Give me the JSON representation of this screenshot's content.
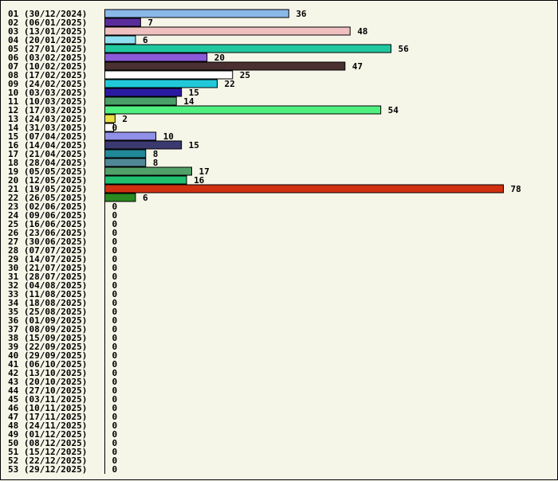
{
  "chart_data": {
    "type": "bar",
    "orientation": "horizontal",
    "title": "",
    "xlabel": "",
    "ylabel": "",
    "grid": false,
    "legend": "none",
    "xlim": [
      0,
      78
    ],
    "categories": [
      "01 (30/12/2024)",
      "02 (06/01/2025)",
      "03 (13/01/2025)",
      "04 (20/01/2025)",
      "05 (27/01/2025)",
      "06 (03/02/2025)",
      "07 (10/02/2025)",
      "08 (17/02/2025)",
      "09 (24/02/2025)",
      "10 (03/03/2025)",
      "11 (10/03/2025)",
      "12 (17/03/2025)",
      "13 (24/03/2025)",
      "14 (31/03/2025)",
      "15 (07/04/2025)",
      "16 (14/04/2025)",
      "17 (21/04/2025)",
      "18 (28/04/2025)",
      "19 (05/05/2025)",
      "20 (12/05/2025)",
      "21 (19/05/2025)",
      "22 (26/05/2025)",
      "23 (02/06/2025)",
      "24 (09/06/2025)",
      "25 (16/06/2025)",
      "26 (23/06/2025)",
      "27 (30/06/2025)",
      "28 (07/07/2025)",
      "29 (14/07/2025)",
      "30 (21/07/2025)",
      "31 (28/07/2025)",
      "32 (04/08/2025)",
      "33 (11/08/2025)",
      "34 (18/08/2025)",
      "35 (25/08/2025)",
      "36 (01/09/2025)",
      "37 (08/09/2025)",
      "38 (15/09/2025)",
      "39 (22/09/2025)",
      "40 (29/09/2025)",
      "41 (06/10/2025)",
      "42 (13/10/2025)",
      "43 (20/10/2025)",
      "44 (27/10/2025)",
      "45 (03/11/2025)",
      "46 (10/11/2025)",
      "47 (17/11/2025)",
      "48 (24/11/2025)",
      "49 (01/12/2025)",
      "50 (08/12/2025)",
      "51 (15/12/2025)",
      "52 (22/12/2025)",
      "53 (29/12/2025)"
    ],
    "values": [
      36,
      7,
      48,
      6,
      56,
      20,
      47,
      25,
      22,
      15,
      14,
      54,
      2,
      0,
      10,
      15,
      8,
      8,
      17,
      16,
      78,
      6,
      0,
      0,
      0,
      0,
      0,
      0,
      0,
      0,
      0,
      0,
      0,
      0,
      0,
      0,
      0,
      0,
      0,
      0,
      0,
      0,
      0,
      0,
      0,
      0,
      0,
      0,
      0,
      0,
      0,
      0,
      0
    ],
    "colors": [
      "#8ab8e8",
      "#5a2d9a",
      "#f0c0c0",
      "#8ee0f0",
      "#20c8a0",
      "#8a5ad8",
      "#4a3030",
      "#ffffff",
      "#20c8d8",
      "#2a1aa0",
      "#48a068",
      "#50f080",
      "#e8e040",
      "#ffffff",
      "#9090e8",
      "#3a3a70",
      "#208898",
      "#508898",
      "#50a068",
      "#20c070",
      "#d03010",
      "#2a8a20"
    ]
  }
}
